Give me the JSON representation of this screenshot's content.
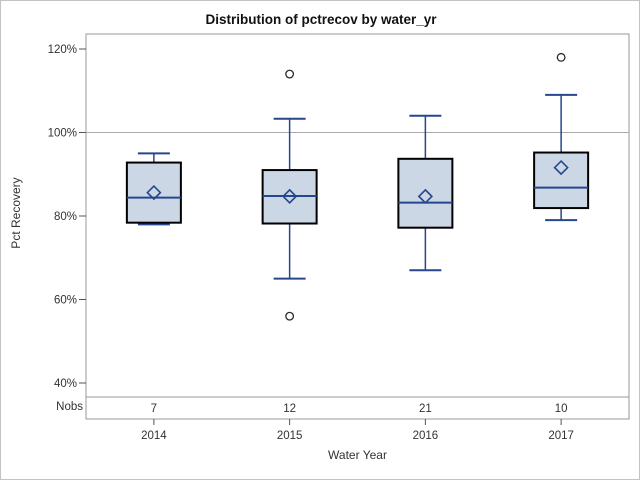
{
  "chart_data": {
    "type": "box",
    "title": "Distribution of pctrecov by water_yr",
    "xlabel": "Water Year",
    "ylabel": "Pct Recovery",
    "nobs_label": "Nobs",
    "categories": [
      "2014",
      "2015",
      "2016",
      "2017"
    ],
    "nobs": [
      7,
      12,
      21,
      10
    ],
    "y_axis": {
      "ticks": [
        40,
        60,
        80,
        100,
        120
      ],
      "tick_suffix": "%",
      "range_shown": [
        36.6,
        123.5
      ]
    },
    "reference_line": 100,
    "legend": "none",
    "grid": "off",
    "series": [
      {
        "category": "2014",
        "n": 7,
        "whisker_low": 78.0,
        "q1": 78.4,
        "median": 84.4,
        "q3": 92.8,
        "whisker_high": 95.0,
        "mean": 85.6,
        "outliers": []
      },
      {
        "category": "2015",
        "n": 12,
        "whisker_low": 65.0,
        "q1": 78.2,
        "median": 84.8,
        "q3": 91.0,
        "whisker_high": 103.3,
        "mean": 84.7,
        "outliers": [
          114,
          56
        ]
      },
      {
        "category": "2016",
        "n": 21,
        "whisker_low": 67.0,
        "q1": 77.2,
        "median": 83.2,
        "q3": 93.7,
        "whisker_high": 104.0,
        "mean": 84.7,
        "outliers": []
      },
      {
        "category": "2017",
        "n": 10,
        "whisker_low": 79.0,
        "q1": 81.9,
        "median": 86.8,
        "q3": 95.2,
        "whisker_high": 109.0,
        "mean": 91.6,
        "outliers": [
          118
        ]
      }
    ],
    "colors": {
      "box_fill": "#ccd7e6",
      "box_border": "#000000",
      "blue_line": "#26478d",
      "outlier_stroke": "#2b2b2b",
      "frame": "#999999",
      "reference_line": "#ababab",
      "tick": "#555555",
      "text": "#333333"
    }
  }
}
